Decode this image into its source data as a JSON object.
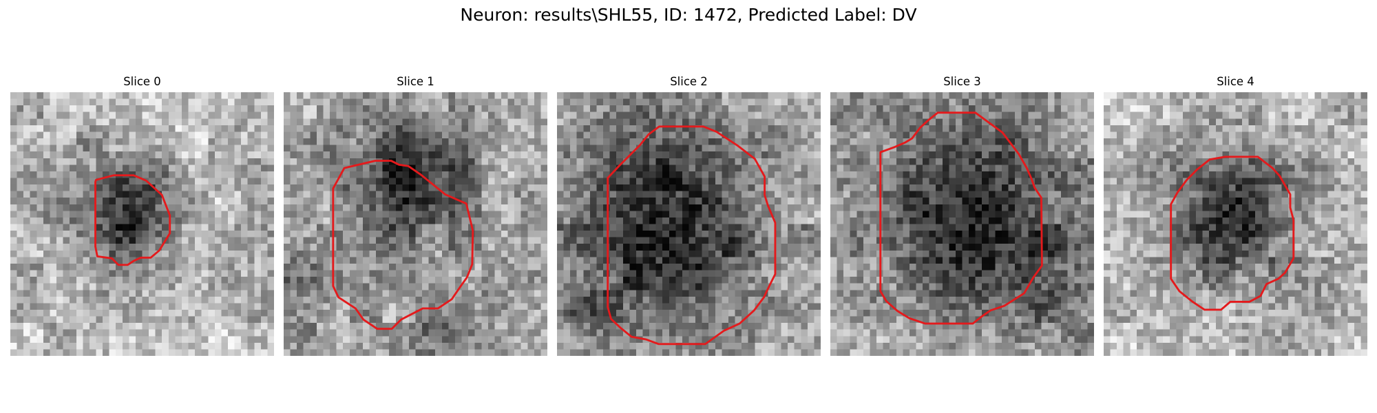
{
  "figure": {
    "title": "Neuron: results\\SHL55, ID: 1472, Predicted Label: DV"
  },
  "contour_color": "#e41a1c",
  "colormap": "grayscale",
  "panels": [
    {
      "title": "Slice 0",
      "seed": 11,
      "brightness": 0.72,
      "blob": {
        "cx": 18.5,
        "cy": 17.8,
        "r": 4.6,
        "strength": 0.55
      },
      "extra_blobs": [
        {
          "cx": 8.5,
          "cy": 16,
          "r": 6,
          "strength": 0.15
        },
        {
          "cx": 14,
          "cy": 27,
          "r": 3.5,
          "strength": 0.12
        }
      ],
      "contour": [
        [
          13,
          13.3
        ],
        [
          15.7,
          12.6
        ],
        [
          18.7,
          12.6
        ],
        [
          20.6,
          13.4
        ],
        [
          23,
          15.6
        ],
        [
          24.2,
          18.7
        ],
        [
          24.2,
          21.4
        ],
        [
          22.6,
          24
        ],
        [
          21.3,
          25.1
        ],
        [
          19.8,
          25.1
        ],
        [
          18.7,
          25.6
        ],
        [
          17.8,
          26.2
        ],
        [
          16.4,
          26.2
        ],
        [
          15.4,
          25.2
        ],
        [
          13.2,
          24.9
        ],
        [
          12.9,
          23.4
        ],
        [
          12.9,
          13.6
        ]
      ]
    },
    {
      "title": "Slice 1",
      "seed": 23,
      "brightness": 0.68,
      "blob": {
        "cx": 19.2,
        "cy": 13.2,
        "r": 6.5,
        "strength": 0.55
      },
      "extra_blobs": [
        {
          "cx": 2,
          "cy": 30,
          "r": 5,
          "strength": 0.22
        },
        {
          "cx": 24,
          "cy": 34,
          "r": 5,
          "strength": 0.18
        }
      ],
      "contour": [
        [
          7.5,
          14.6
        ],
        [
          9.2,
          11.5
        ],
        [
          13.9,
          10.4
        ],
        [
          16.3,
          10.4
        ],
        [
          17.5,
          11
        ],
        [
          18.9,
          11.2
        ],
        [
          20.8,
          12.5
        ],
        [
          24.5,
          15.5
        ],
        [
          27.7,
          16.9
        ],
        [
          28.7,
          21
        ],
        [
          28.6,
          26.1
        ],
        [
          27.8,
          28.1
        ],
        [
          26.8,
          29.5
        ],
        [
          25.5,
          31.4
        ],
        [
          23.4,
          32.8
        ],
        [
          21.1,
          32.8
        ],
        [
          17.8,
          34.5
        ],
        [
          16.4,
          35.9
        ],
        [
          14.2,
          35.9
        ],
        [
          12.1,
          34.5
        ],
        [
          10.9,
          32.8
        ],
        [
          8.3,
          31.1
        ],
        [
          7.5,
          29.4
        ],
        [
          7.5,
          15
        ]
      ]
    },
    {
      "title": "Slice 2",
      "seed": 37,
      "brightness": 0.66,
      "blob": {
        "cx": 16.7,
        "cy": 20,
        "r": 10.5,
        "strength": 0.55
      },
      "extra_blobs": [
        {
          "cx": 5,
          "cy": 35,
          "r": 4.5,
          "strength": 0.15
        }
      ],
      "contour": [
        [
          9.5,
          11.1
        ],
        [
          12.6,
          8
        ],
        [
          13.9,
          6.4
        ],
        [
          15.5,
          5.2
        ],
        [
          22.2,
          5.2
        ],
        [
          24.2,
          6
        ],
        [
          27.4,
          8.1
        ],
        [
          30,
          10.1
        ],
        [
          31.5,
          12.8
        ],
        [
          31.5,
          15.6
        ],
        [
          32,
          17.2
        ],
        [
          33.1,
          19.8
        ],
        [
          33.1,
          27.6
        ],
        [
          32.2,
          29.4
        ],
        [
          31.4,
          31.1
        ],
        [
          29.9,
          33.1
        ],
        [
          27.7,
          35.1
        ],
        [
          25.3,
          36.2
        ],
        [
          22.5,
          38.2
        ],
        [
          15.4,
          38.2
        ],
        [
          13.5,
          37.5
        ],
        [
          11.3,
          37.1
        ],
        [
          9.7,
          35.8
        ],
        [
          8.2,
          34.4
        ],
        [
          7.7,
          32.6
        ],
        [
          7.7,
          13
        ]
      ]
    },
    {
      "title": "Slice 3",
      "seed": 41,
      "brightness": 0.67,
      "blob": {
        "cx": 22,
        "cy": 19,
        "r": 10,
        "strength": 0.58
      },
      "extra_blobs": [
        {
          "cx": 34,
          "cy": 31,
          "r": 5,
          "strength": 0.2
        },
        {
          "cx": 12,
          "cy": 2,
          "r": 5,
          "strength": 0.12
        }
      ],
      "contour": [
        [
          9.8,
          8.3
        ],
        [
          11.4,
          7.6
        ],
        [
          12.4,
          7
        ],
        [
          13.6,
          5.4
        ],
        [
          14.8,
          4.3
        ],
        [
          16.3,
          3.1
        ],
        [
          22,
          3.1
        ],
        [
          26.1,
          6.1
        ],
        [
          28.6,
          9.4
        ],
        [
          29.8,
          11.5
        ],
        [
          30.5,
          13.1
        ],
        [
          31,
          14.5
        ],
        [
          32,
          16
        ],
        [
          32.1,
          26.3
        ],
        [
          30.8,
          28.1
        ],
        [
          29.4,
          30.5
        ],
        [
          26.4,
          32.4
        ],
        [
          24.3,
          33.1
        ],
        [
          23,
          34
        ],
        [
          21.6,
          35.1
        ],
        [
          14.4,
          35.1
        ],
        [
          12,
          34.3
        ],
        [
          10.2,
          33.2
        ],
        [
          8.5,
          31.7
        ],
        [
          7.6,
          30.2
        ],
        [
          7.6,
          9.1
        ]
      ]
    },
    {
      "title": "Slice 4",
      "seed": 53,
      "brightness": 0.73,
      "blob": {
        "cx": 19.3,
        "cy": 18.3,
        "r": 7.3,
        "strength": 0.55
      },
      "extra_blobs": [],
      "contour": [
        [
          11.2,
          15.2
        ],
        [
          12.6,
          13.3
        ],
        [
          14.2,
          11.7
        ],
        [
          16.1,
          10.2
        ],
        [
          18.4,
          9.8
        ],
        [
          23.4,
          9.8
        ],
        [
          25.6,
          11.5
        ],
        [
          26.7,
          12.7
        ],
        [
          28.3,
          15.5
        ],
        [
          28.3,
          17.5
        ],
        [
          28.8,
          19.4
        ],
        [
          28.8,
          25.2
        ],
        [
          27.5,
          27.4
        ],
        [
          26.5,
          28.3
        ],
        [
          24.7,
          29.1
        ],
        [
          23.8,
          30.9
        ],
        [
          22.1,
          31.8
        ],
        [
          19.2,
          31.8
        ],
        [
          17.8,
          33
        ],
        [
          15.3,
          33
        ],
        [
          13.5,
          31.8
        ],
        [
          11.5,
          30.2
        ],
        [
          10.2,
          28.3
        ],
        [
          10.2,
          17
        ]
      ]
    }
  ]
}
